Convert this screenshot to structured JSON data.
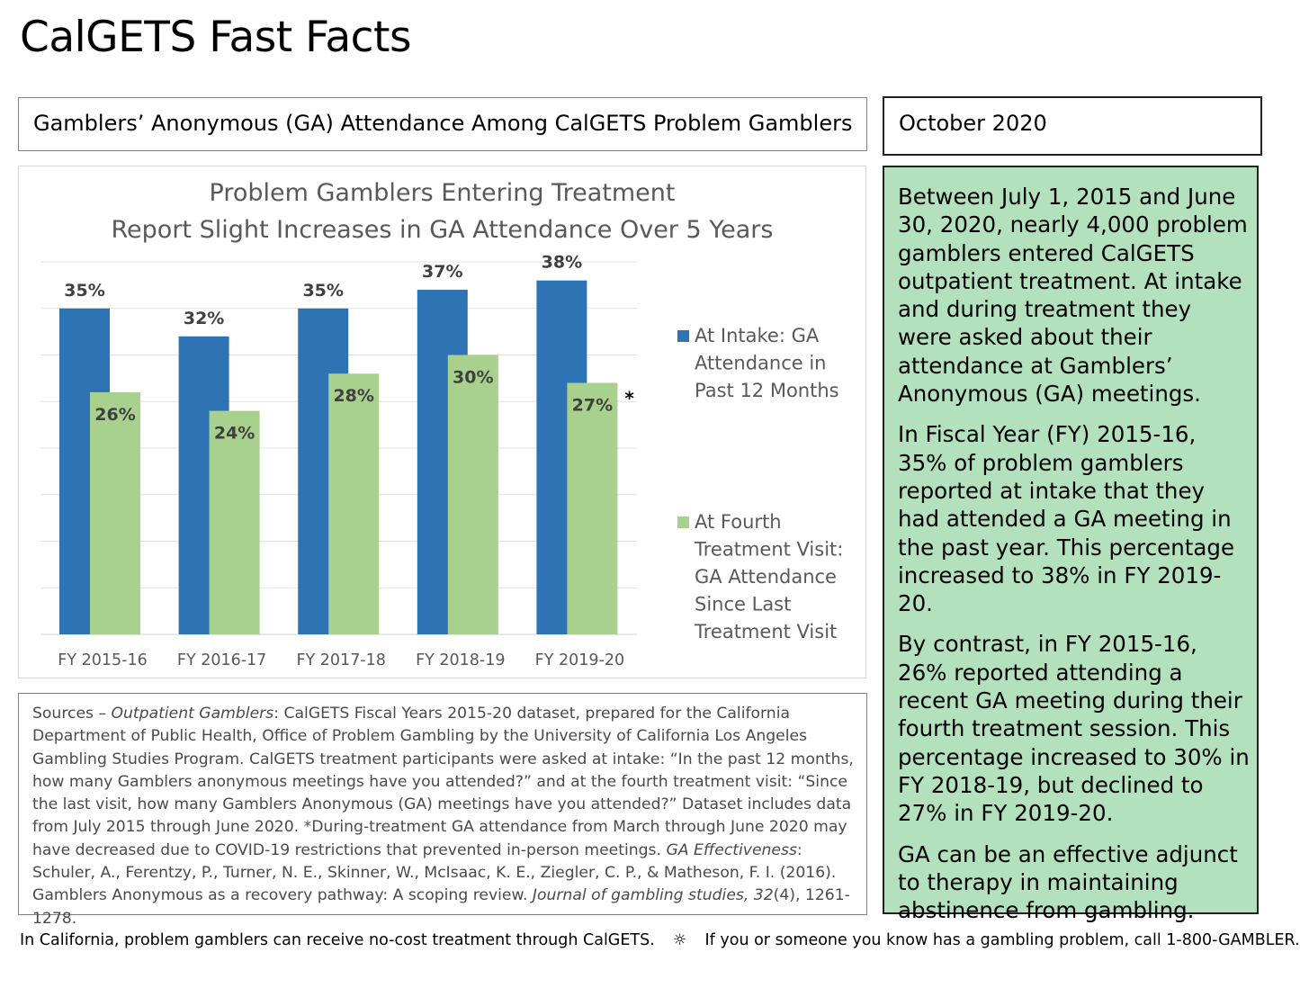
{
  "page": {
    "title": "CalGETS Fast Facts",
    "subtitle": "Gamblers’ Anonymous (GA) Attendance Among CalGETS Problem Gamblers",
    "date": "October 2020"
  },
  "chart_data": {
    "type": "bar",
    "title_line1": "Problem Gamblers Entering Treatment",
    "title_line2": "Report Slight Increases in GA Attendance Over 5 Years",
    "categories": [
      "FY 2015-16",
      "FY 2016-17",
      "FY 2017-18",
      "FY 2018-19",
      "FY 2019-20"
    ],
    "series": [
      {
        "name": "At Intake: GA Attendance in Past 12 Months",
        "legend_lines": [
          "At Intake: GA",
          "Attendance in",
          "Past 12 Months"
        ],
        "color": "#2e74b5",
        "values": [
          35,
          32,
          35,
          37,
          38
        ],
        "labels": [
          "35%",
          "32%",
          "35%",
          "37%",
          "38%"
        ]
      },
      {
        "name": "At Fourth Treatment Visit: GA Attendance Since Last Treatment Visit",
        "legend_lines": [
          "At Fourth",
          "Treatment Visit:",
          "GA Attendance",
          "Since Last",
          "Treatment Visit"
        ],
        "color": "#a9d18e",
        "values": [
          26,
          24,
          28,
          30,
          27
        ],
        "labels": [
          "26%",
          "24%",
          "28%",
          "30%",
          "27%"
        ]
      }
    ],
    "annotation": "*",
    "ylim": [
      0,
      40
    ],
    "grid": true,
    "legend_position": "right"
  },
  "sources": {
    "prefix": "Sources – ",
    "outpatient_label": "Outpatient Gamblers",
    "outpatient_text": ": CalGETS Fiscal Years 2015-20 dataset, prepared for the California Department of Public Health, Office of Problem Gambling by the University of California Los Angeles Gambling Studies Program. CalGETS treatment participants were asked at intake: “In the past 12 months, how many Gamblers anonymous meetings have you attended?” and at the fourth treatment visit: “Since the last visit, how many Gamblers Anonymous (GA) meetings have you attended?” Dataset includes data from July 2015 through June 2020. *During-treatment GA attendance from March through June 2020 may have decreased due to COVID-19 restrictions that prevented in-person meetings. ",
    "effectiveness_label": "GA Effectiveness",
    "effectiveness_text": ": Schuler, A., Ferentzy, P., Turner, N. E., Skinner, W., McIsaac, K. E., Ziegler, C. P., & Matheson, F. I. (2016). Gamblers Anonymous as a recovery pathway: A scoping review. ",
    "journal": "Journal of gambling studies, 32",
    "issue": "(4), 1261-1278."
  },
  "facts": [
    "Between July 1, 2015 and June 30, 2020, nearly 4,000 problem gamblers entered CalGETS outpatient treatment. At intake and during treatment they were asked about their attendance at Gamblers’ Anonymous (GA) meetings.",
    "In Fiscal Year (FY) 2015-16, 35% of problem gamblers reported at intake that they had attended a GA meeting in the past year. This percentage increased to 38% in FY 2019-20.",
    "By contrast, in FY 2015-16, 26% reported attending a recent GA meeting during their fourth treatment session. This percentage increased to 30% in FY 2018-19, but declined to 27% in FY 2019-20.",
    "GA can be an effective adjunct to therapy in maintaining abstinence from gambling."
  ],
  "footer": {
    "left": "In California, problem gamblers can receive no-cost treatment through CalGETS.",
    "separator_icon": "sun-icon",
    "right": "If you or someone you know has a gambling problem, call 1-800-GAMBLER."
  }
}
